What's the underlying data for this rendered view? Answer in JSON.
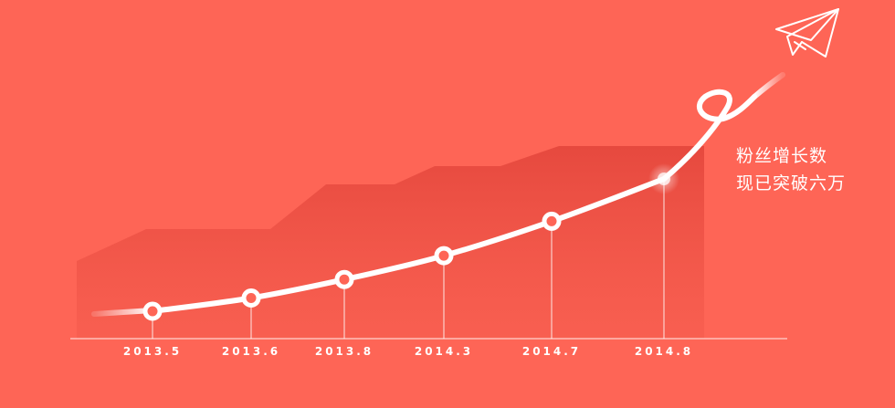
{
  "chart_data": {
    "type": "line",
    "x": [
      "2013.5",
      "2013.6",
      "2013.8",
      "2014.3",
      "2014.7",
      "2014.8"
    ],
    "series": [
      {
        "values": [
          1.0,
          1.5,
          2.2,
          3.1,
          4.4,
          6.0
        ]
      }
    ],
    "annotation": [
      "粉丝增长数",
      "现已突破六万"
    ],
    "colors": {
      "background": "#fe6556",
      "line": "#ffffff",
      "area": "#e8483c"
    },
    "grid": false,
    "legend": "none"
  },
  "icons": {
    "corner": "paper-plane-icon"
  }
}
